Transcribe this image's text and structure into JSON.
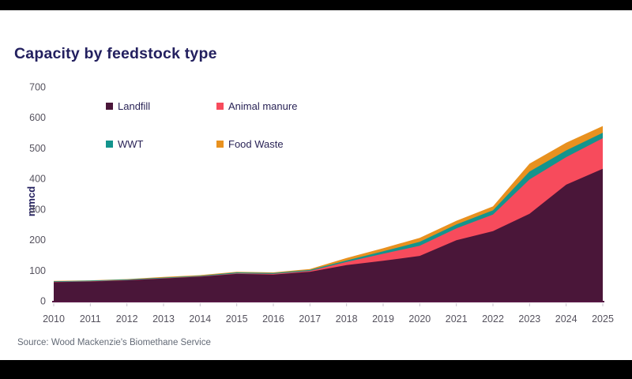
{
  "page": {
    "title": "Capacity by feedstock type",
    "source": "Source: Wood Mackenzie's Biomethane Service"
  },
  "colors": {
    "landfill": "#4a1639",
    "animal_manure": "#f74b5c",
    "wwt": "#13948d",
    "food_waste": "#e8911f",
    "title_text": "#23205f",
    "legend_text": "#2a2457",
    "tick_text": "#55525e",
    "axis_line": "#561744",
    "tick_mark": "#c9c4cf",
    "source_text": "#636a76",
    "frame_bar": "#000000"
  },
  "chart_data": {
    "type": "area",
    "stacked": true,
    "title": "Capacity by feedstock type",
    "ylabel": "mmcd",
    "ylim": [
      0,
      700
    ],
    "yticks": [
      0,
      100,
      200,
      300,
      400,
      500,
      600,
      700
    ],
    "x": [
      2010,
      2011,
      2012,
      2013,
      2014,
      2015,
      2016,
      2017,
      2018,
      2019,
      2020,
      2021,
      2022,
      2023,
      2024,
      2025
    ],
    "series": [
      {
        "name": "Landfill",
        "color": "#4a1639",
        "values": [
          61,
          63,
          67,
          73,
          79,
          88,
          86,
          95,
          117,
          131,
          147,
          198,
          228,
          285,
          380,
          432
        ]
      },
      {
        "name": "Animal manure",
        "color": "#f74b5c",
        "values": [
          1,
          1,
          1,
          1,
          1,
          2,
          2,
          3,
          10,
          23,
          33,
          39,
          54,
          112,
          90,
          100
        ]
      },
      {
        "name": "WWT",
        "color": "#13948d",
        "values": [
          2,
          2,
          2,
          2,
          2,
          3,
          3,
          3,
          5,
          8,
          13,
          13,
          14,
          26,
          22,
          18
        ]
      },
      {
        "name": "Food Waste",
        "color": "#e8911f",
        "values": [
          1,
          1,
          1,
          2,
          2,
          2,
          2,
          3,
          8,
          10,
          13,
          12,
          13,
          26,
          25,
          22
        ]
      }
    ],
    "totals": [
      65,
      67,
      71,
      78,
      84,
      95,
      93,
      104,
      140,
      172,
      206,
      262,
      309,
      449,
      517,
      572
    ],
    "legend_position": "top-left",
    "grid": false
  }
}
